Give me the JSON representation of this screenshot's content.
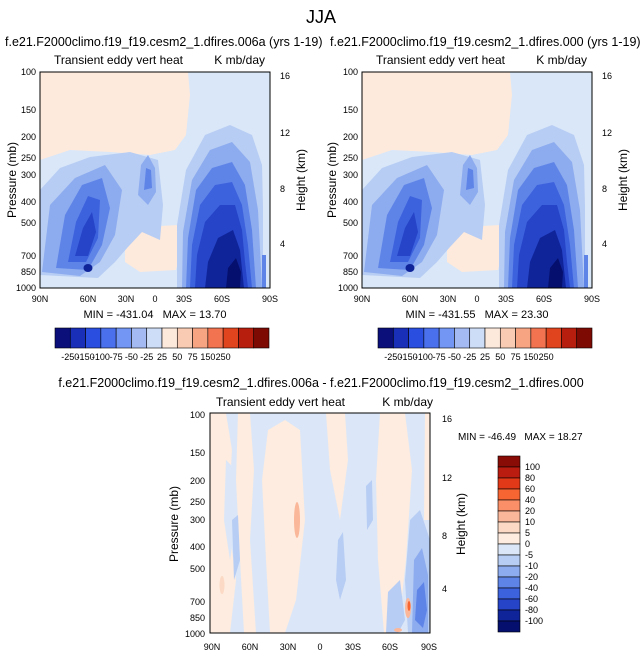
{
  "page_title": "JJA",
  "chart_data": [
    {
      "type": "heatmap",
      "title": "f.e21.F2000climo.f19_f19.cesm2_1.dfires.006a (yrs 1-19)",
      "subtitle_left": "Transient eddy vert heat",
      "subtitle_right": "K mb/day",
      "xlabel": "",
      "ylabel": "Pressure (mb)",
      "y2label": "Height (km)",
      "x_ticks": [
        "90N",
        "60N",
        "30N",
        "0",
        "30S",
        "60S",
        "90S"
      ],
      "y_ticks": [
        "100",
        "150",
        "200",
        "250",
        "300",
        "400",
        "500",
        "700",
        "850",
        "1000"
      ],
      "y2_ticks": [
        "16",
        "12",
        "8",
        "4"
      ],
      "y_scale": "log",
      "ylim": [
        1000,
        100
      ],
      "stats": "MIN = -431.04   MAX = 13.70",
      "min": -431.04,
      "max": 13.7,
      "colorbar_labels": [
        "-250",
        "-150",
        "-100",
        "-75",
        "-50",
        "-25",
        "25",
        "50",
        "75",
        "150",
        "250"
      ]
    },
    {
      "type": "heatmap",
      "title": "f.e21.F2000climo.f19_f19.cesm2_1.dfires.000 (yrs 1-19)",
      "subtitle_left": "Transient eddy vert heat",
      "subtitle_right": "K mb/day",
      "xlabel": "",
      "ylabel": "Pressure (mb)",
      "y2label": "Height (km)",
      "x_ticks": [
        "90N",
        "60N",
        "30N",
        "0",
        "30S",
        "60S",
        "90S"
      ],
      "y_ticks": [
        "100",
        "150",
        "200",
        "250",
        "300",
        "400",
        "500",
        "700",
        "850",
        "1000"
      ],
      "y2_ticks": [
        "16",
        "12",
        "8",
        "4"
      ],
      "y_scale": "log",
      "ylim": [
        1000,
        100
      ],
      "stats": "MIN = -431.55   MAX = 23.30",
      "min": -431.55,
      "max": 23.3,
      "colorbar_labels": [
        "-250",
        "-150",
        "-100",
        "-75",
        "-50",
        "-25",
        "25",
        "50",
        "75",
        "150",
        "250"
      ]
    },
    {
      "type": "heatmap",
      "title": "f.e21.F2000climo.f19_f19.cesm2_1.dfires.006a - f.e21.F2000climo.f19_f19.cesm2_1.dfires.000",
      "subtitle_left": "Transient eddy vert heat",
      "subtitle_right": "K mb/day",
      "xlabel": "",
      "ylabel": "Pressure (mb)",
      "y2label": "Height (km)",
      "x_ticks": [
        "90N",
        "60N",
        "30N",
        "0",
        "30S",
        "60S",
        "90S"
      ],
      "y_ticks": [
        "100",
        "150",
        "200",
        "250",
        "300",
        "400",
        "500",
        "700",
        "850",
        "1000"
      ],
      "y2_ticks": [
        "16",
        "12",
        "8",
        "4"
      ],
      "y_scale": "log",
      "ylim": [
        1000,
        100
      ],
      "stats": "MIN = -46.49   MAX = 18.27",
      "min": -46.49,
      "max": 18.27,
      "colorbar_labels": [
        "100",
        "80",
        "60",
        "40",
        "20",
        "10",
        "5",
        "0",
        "-5",
        "-10",
        "-20",
        "-40",
        "-60",
        "-80",
        "-100"
      ]
    }
  ],
  "colors": {
    "top_colorbar": [
      "#0a0f7a",
      "#1a2fb8",
      "#2a4fe0",
      "#4a70ee",
      "#7396f4",
      "#a3baf2",
      "#cddcf7",
      "#fde9dc",
      "#f9cbb2",
      "#f6a482",
      "#f17350",
      "#e0441e",
      "#b81e0e",
      "#7e0a04"
    ],
    "diff_colorbar": [
      "#8a0c06",
      "#bb1c10",
      "#e23a18",
      "#f76532",
      "#fb9068",
      "#fbb79a",
      "#fcd9c4",
      "#fdecdf",
      "#dbe7f8",
      "#b8cdf3",
      "#8dacef",
      "#5f84e8",
      "#3d62dd",
      "#2544c8",
      "#10249a",
      "#05106e"
    ],
    "neutral_light_blue": "#d9e7f9",
    "neutral_light_pink": "#fdeadc"
  }
}
